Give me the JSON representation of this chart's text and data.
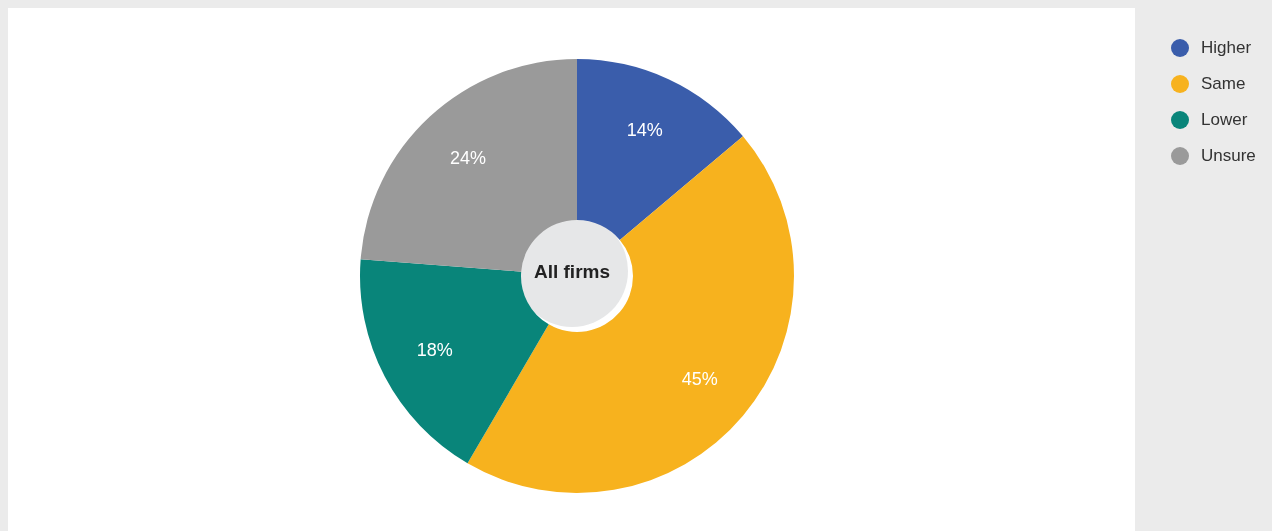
{
  "chart_data": {
    "type": "donut",
    "categories": [
      "Higher",
      "Same",
      "Lower",
      "Unsure"
    ],
    "values": [
      14,
      45,
      18,
      24
    ],
    "colors": [
      "#3a5dab",
      "#f7b21e",
      "#09857a",
      "#9a9a9a"
    ],
    "value_labels": [
      "14%",
      "45%",
      "18%",
      "24%"
    ],
    "legend": "top right",
    "annotations": [
      "All firms"
    ]
  }
}
